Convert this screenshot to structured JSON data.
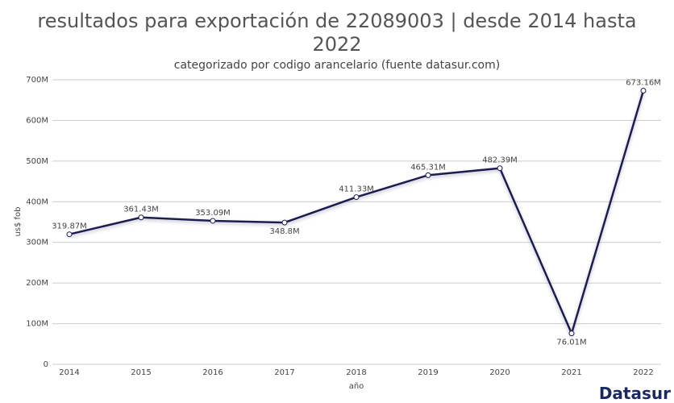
{
  "chart_data": {
    "type": "line",
    "title": "resultados para exportación de 22089003 | desde 2014 hasta 2022",
    "subtitle": "categorizado por codigo arancelario (fuente datasur.com)",
    "x_label": "año",
    "y_label": "us$ fob",
    "categories": [
      "2014",
      "2015",
      "2016",
      "2017",
      "2018",
      "2019",
      "2020",
      "2021",
      "2022"
    ],
    "series": [
      {
        "name": "us$ fob",
        "color": "#1b1b4f",
        "values": [
          319870000,
          361430000,
          353090000,
          348800000,
          411330000,
          465310000,
          482390000,
          76010000,
          673160000
        ],
        "value_labels": [
          "319.87M",
          "361.43M",
          "353.09M",
          "348.8M",
          "411.33M",
          "465.31M",
          "482.39M",
          "76.01M",
          "673.16M"
        ]
      }
    ],
    "ylim": [
      0,
      700000000
    ],
    "yticks": [
      0,
      {
        "value": 100000000,
        "label": "100M"
      },
      {
        "value": 200000000,
        "label": "200M"
      },
      {
        "value": 300000000,
        "label": "300M"
      },
      {
        "value": 400000000,
        "label": "400M"
      },
      {
        "value": 500000000,
        "label": "500M"
      },
      {
        "value": 600000000,
        "label": "600M"
      },
      {
        "value": 700000000,
        "label": "700M"
      }
    ],
    "grid": true,
    "brand": "Datasur"
  }
}
